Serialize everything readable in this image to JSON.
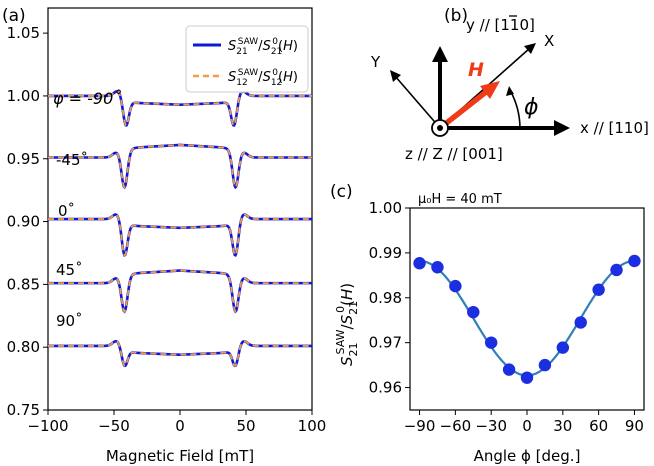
{
  "panels": {
    "a": "(a)",
    "b": "(b)",
    "c": "(c)"
  },
  "colors": {
    "blue": "#0a1adb",
    "orange": "#f39a4c",
    "red": "#f03a18",
    "fit": "#2f7fb8",
    "dots": "#1b2ee0"
  },
  "chart_data": [
    {
      "id": "a",
      "type": "line",
      "xlabel": "Magnetic Field [mT]",
      "ylabel": "",
      "xlim": [
        -100,
        100
      ],
      "ylim": [
        0.75,
        1.07
      ],
      "xticks": [
        "-100",
        "-50",
        "0",
        "50",
        "100"
      ],
      "yticks": [
        "0.75",
        "0.80",
        "0.85",
        "0.90",
        "0.95",
        "1.00",
        "1.05"
      ],
      "legend": [
        "S21SAW/S210(H)",
        "S12SAW/S120(H)"
      ],
      "curve_labels": [
        "φ = -90˚",
        "-45˚",
        "0˚",
        "45˚",
        "90˚"
      ],
      "series": [
        {
          "name": "φ = -90°",
          "baseline": 1.0,
          "dip_center": -41,
          "dip_depth": 0.022,
          "mid_level": 0.993
        },
        {
          "name": "-45°",
          "baseline": 0.951,
          "dip_center": -42,
          "dip_depth": 0.026,
          "mid_level": 0.961
        },
        {
          "name": "0°",
          "baseline": 0.902,
          "dip_center": -42,
          "dip_depth": 0.028,
          "mid_level": 0.895
        },
        {
          "name": "45°",
          "baseline": 0.851,
          "dip_center": -42,
          "dip_depth": 0.025,
          "mid_level": 0.861
        },
        {
          "name": "90°",
          "baseline": 0.801,
          "dip_center": -42,
          "dip_depth": 0.015,
          "mid_level": 0.794
        }
      ]
    },
    {
      "id": "c",
      "type": "scatter",
      "annotation": "μ₀H = 40 mT",
      "xlabel": "Angle ϕ [deg.]",
      "ylabel": "S21SAW/S210(H)",
      "xlim": [
        -98,
        98
      ],
      "ylim": [
        0.955,
        1.0
      ],
      "xticks": [
        "-90",
        "-60",
        "-30",
        "0",
        "30",
        "60",
        "90"
      ],
      "yticks": [
        "0.96",
        "0.97",
        "0.98",
        "0.99",
        "1.00"
      ],
      "points": {
        "x": [
          -90,
          -75,
          -60,
          -45,
          -30,
          -15,
          0,
          15,
          30,
          45,
          60,
          75,
          90
        ],
        "y": [
          0.9877,
          0.9868,
          0.9826,
          0.9768,
          0.97,
          0.964,
          0.9622,
          0.965,
          0.9689,
          0.9745,
          0.9818,
          0.9862,
          0.9882
        ]
      },
      "fit": {
        "type": "cos2",
        "offset": 0.9627,
        "amplitude": 0.0255
      }
    }
  ],
  "diagram": {
    "y_axis": "y // [110]",
    "y_bar_index": "1",
    "x_axis": "x // [110]",
    "z_axis": "z // Z // [001]",
    "X": "X",
    "Y": "Y",
    "H": "H",
    "phi": "ϕ"
  }
}
